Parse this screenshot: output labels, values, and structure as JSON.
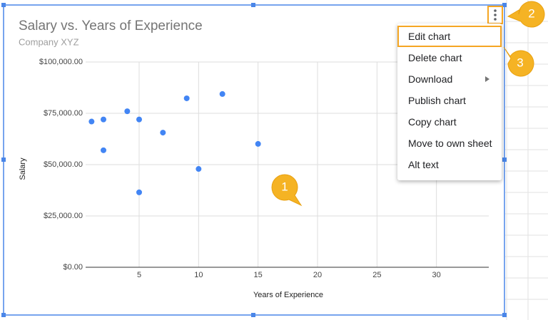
{
  "chart_data": {
    "type": "scatter",
    "title": "Salary vs. Years of Experience",
    "subtitle": "Company XYZ",
    "x_label": "Years of Experience",
    "y_label": "Salary",
    "x": [
      1,
      2,
      2,
      4,
      5,
      5,
      7,
      9,
      10,
      12,
      15
    ],
    "values": [
      71000,
      72000,
      57000,
      76000,
      72000,
      36500,
      65600,
      82300,
      47900,
      84400,
      60100
    ],
    "color": "#4285f4",
    "xlim": [
      0.5,
      34.4
    ],
    "xticks": [
      5,
      10,
      15,
      20,
      25,
      30
    ],
    "ylim": [
      0,
      100000
    ],
    "yticks": [
      {
        "value": 0,
        "label": "$0.00"
      },
      {
        "value": 25000,
        "label": "$25,000.00"
      },
      {
        "value": 50000,
        "label": "$50,000.00"
      },
      {
        "value": 75000,
        "label": "$75,000.00"
      },
      {
        "value": 100000,
        "label": "$100,000.00"
      }
    ],
    "grid": true
  },
  "menu": {
    "items": [
      "Edit chart",
      "Delete chart",
      "Download",
      "Publish chart",
      "Copy chart",
      "Move to own sheet",
      "Alt text"
    ]
  },
  "callouts": [
    "1",
    "2",
    "3"
  ]
}
